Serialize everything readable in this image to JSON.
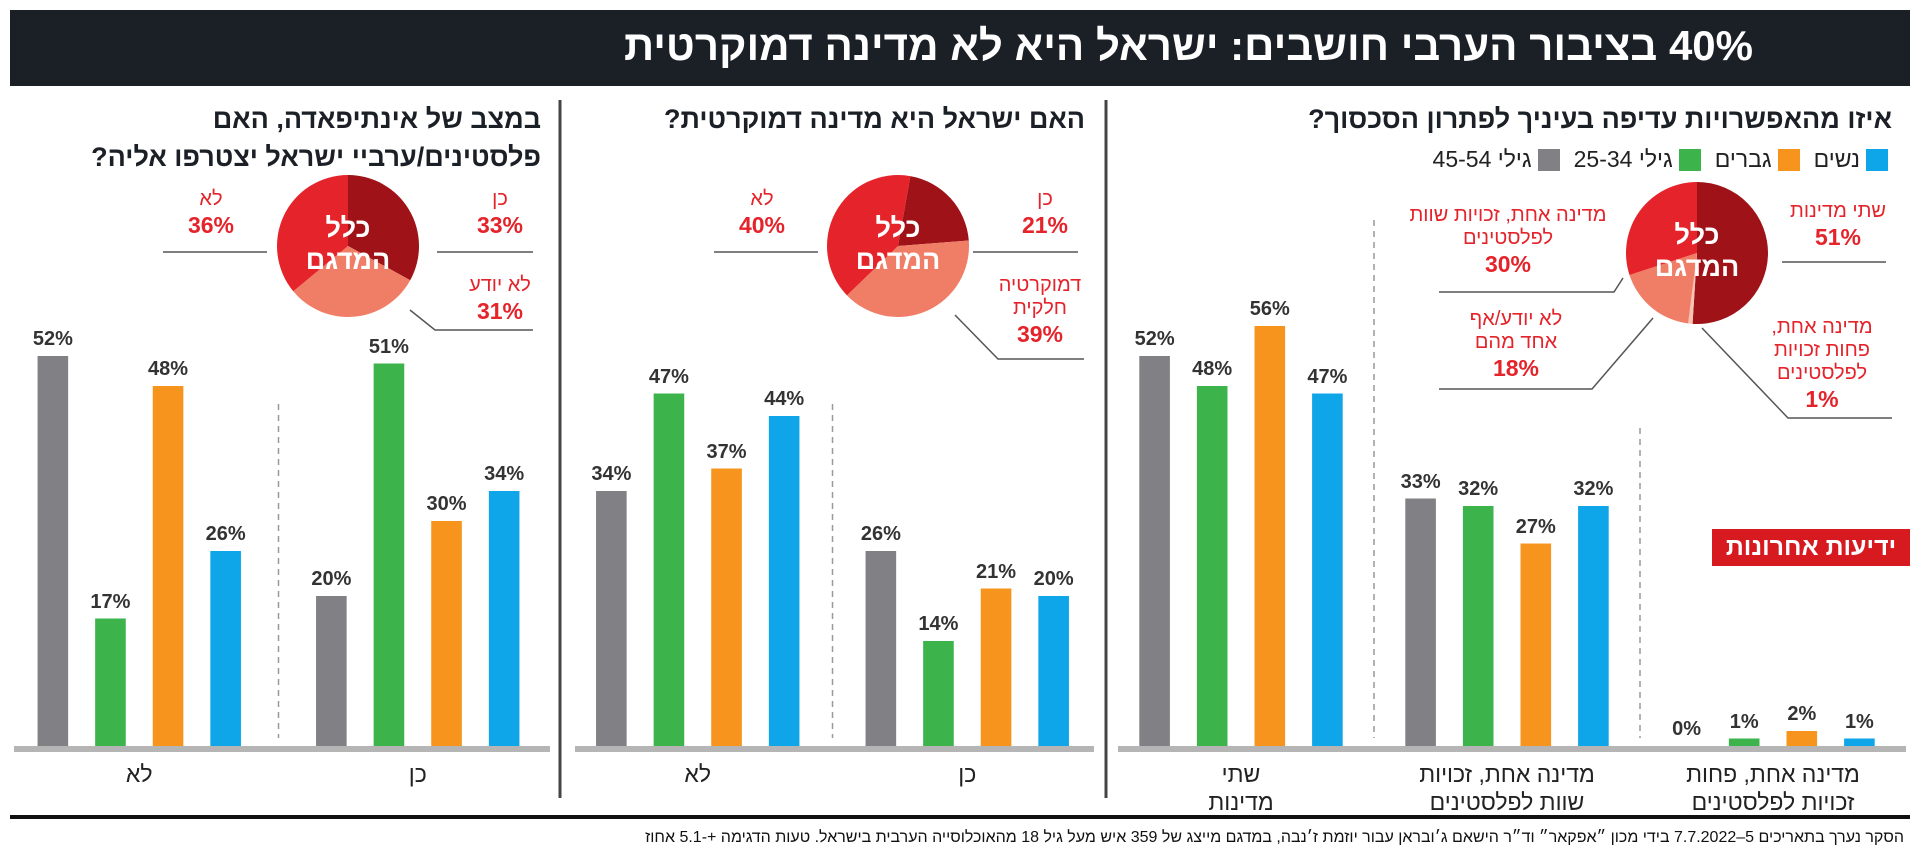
{
  "title": "40% בציבור הערבי חושבים: ישראל היא לא מדינה דמוקרטית",
  "brand": "ידיעות אחרונות",
  "footer": "הסקר נערך בתאריכים 5–7.7.2022 בידי מכון ״אפקאר״ וד״ר הישאם ג׳ובראן עבור יוזמת ז׳נבה, במדגם מייצג של 359 איש מעל גיל 18 מהאוכלוסייה הערבית בישראל. טעות הדגימה +-5.1 אחוז",
  "legend": [
    {
      "name": "נשים",
      "color": "#0ea5e9"
    },
    {
      "name": "גברים",
      "color": "#f7941d"
    },
    {
      "name": "גילי 25-34",
      "color": "#3cb44b"
    },
    {
      "name": "גילי 45-54",
      "color": "#808085"
    }
  ],
  "chart_data": [
    {
      "type": "bar",
      "title": "איזו מהאפשרויות עדיפה בעיניך לפתרון הסכסוך?",
      "categories": [
        "מדינה אחת, פחות זכויות לפלסטינים",
        "מדינה אחת, זכויות שוות לפלסטינים",
        "שתי מדינות"
      ],
      "series": [
        {
          "values": [
            1,
            32,
            47
          ],
          "value_labels": [
            "1%",
            "32%",
            "47%"
          ]
        },
        {
          "values": [
            2,
            27,
            56
          ],
          "value_labels": [
            "2%",
            "27%",
            "56%"
          ]
        },
        {
          "values": [
            1,
            32,
            48
          ],
          "value_labels": [
            "1%",
            "32%",
            "48%"
          ]
        },
        {
          "values": [
            0,
            33,
            52
          ],
          "value_labels": [
            "0%",
            "33%",
            "52%"
          ]
        }
      ],
      "ylim": [
        0,
        60
      ],
      "pie": {
        "type": "pie",
        "label": "כלל המדגם",
        "slices": [
          {
            "name": "שתי מדינות",
            "value": 51,
            "value_label": "51%",
            "color": "#9e1218"
          },
          {
            "name": "מדינה אחת, פחות זכויות לפלסטינים",
            "value": 1,
            "value_label": "1%",
            "color": "#f6c2b4"
          },
          {
            "name": "לא יודע/אף אחד מהם",
            "value": 18,
            "value_label": "18%",
            "color": "#f07e67"
          },
          {
            "name": "מדינה אחת, זכויות שוות לפלסטינים",
            "value": 30,
            "value_label": "30%",
            "color": "#e4232a"
          }
        ]
      }
    },
    {
      "type": "bar",
      "title": "האם ישראל היא מדינה דמוקרטית?",
      "categories": [
        "כן",
        "לא"
      ],
      "series": [
        {
          "values": [
            20,
            44
          ],
          "value_labels": [
            "20%",
            "44%"
          ]
        },
        {
          "values": [
            21,
            37
          ],
          "value_labels": [
            "21%",
            "37%"
          ]
        },
        {
          "values": [
            14,
            47
          ],
          "value_labels": [
            "14%",
            "47%"
          ]
        },
        {
          "values": [
            26,
            34
          ],
          "value_labels": [
            "26%",
            "34%"
          ]
        }
      ],
      "ylim": [
        0,
        60
      ],
      "pie": {
        "type": "pie",
        "label": "כלל המדגם",
        "slices": [
          {
            "name": "כן",
            "value": 21,
            "value_label": "21%",
            "color": "#9e1218"
          },
          {
            "name": "דמוקרטיה חלקית",
            "value": 39,
            "value_label": "39%",
            "color": "#f07e67"
          },
          {
            "name": "לא",
            "value": 40,
            "value_label": "40%",
            "color": "#e4232a"
          }
        ]
      }
    },
    {
      "type": "bar",
      "title": "במצב של אינתיפאדה, האם פלסטינים/ערביי ישראל יצטרפו אליה?",
      "categories": [
        "כן",
        "לא"
      ],
      "series": [
        {
          "values": [
            34,
            26
          ],
          "value_labels": [
            "34%",
            "26%"
          ]
        },
        {
          "values": [
            30,
            48
          ],
          "value_labels": [
            "30%",
            "48%"
          ]
        },
        {
          "values": [
            51,
            17
          ],
          "value_labels": [
            "51%",
            "17%"
          ]
        },
        {
          "values": [
            20,
            52
          ],
          "value_labels": [
            "20%",
            "52%"
          ]
        }
      ],
      "ylim": [
        0,
        60
      ],
      "pie": {
        "type": "pie",
        "label": "כלל המדגם",
        "slices": [
          {
            "name": "כן",
            "value": 33,
            "value_label": "33%",
            "color": "#9e1218"
          },
          {
            "name": "לא יודע",
            "value": 31,
            "value_label": "31%",
            "color": "#f07e67"
          },
          {
            "name": "לא",
            "value": 36,
            "value_label": "36%",
            "color": "#e4232a"
          }
        ]
      }
    }
  ]
}
